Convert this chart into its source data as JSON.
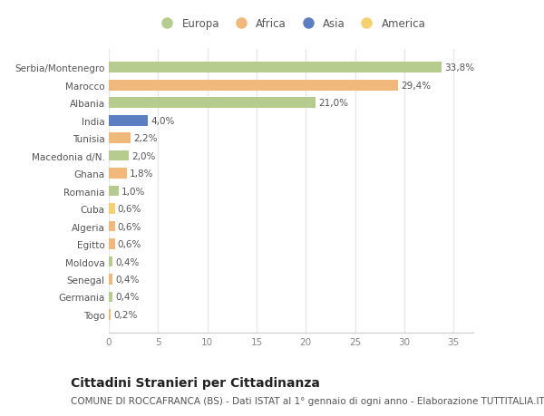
{
  "categories": [
    "Serbia/Montenegro",
    "Marocco",
    "Albania",
    "India",
    "Tunisia",
    "Macedonia d/N.",
    "Ghana",
    "Romania",
    "Cuba",
    "Algeria",
    "Egitto",
    "Moldova",
    "Senegal",
    "Germania",
    "Togo"
  ],
  "values": [
    33.8,
    29.4,
    21.0,
    4.0,
    2.2,
    2.0,
    1.8,
    1.0,
    0.6,
    0.6,
    0.6,
    0.4,
    0.4,
    0.4,
    0.2
  ],
  "labels": [
    "33,8%",
    "29,4%",
    "21,0%",
    "4,0%",
    "2,2%",
    "2,0%",
    "1,8%",
    "1,0%",
    "0,6%",
    "0,6%",
    "0,6%",
    "0,4%",
    "0,4%",
    "0,4%",
    "0,2%"
  ],
  "continents": [
    "Europa",
    "Africa",
    "Europa",
    "Asia",
    "Africa",
    "Europa",
    "Africa",
    "Europa",
    "America",
    "Africa",
    "Africa",
    "Europa",
    "Africa",
    "Europa",
    "Africa"
  ],
  "continent_colors": {
    "Europa": "#b5cc8e",
    "Africa": "#f0b87a",
    "Asia": "#5b7fc0",
    "America": "#f5d070"
  },
  "legend_order": [
    "Europa",
    "Africa",
    "Asia",
    "America"
  ],
  "xlim": [
    0,
    37
  ],
  "xticks": [
    0,
    5,
    10,
    15,
    20,
    25,
    30,
    35
  ],
  "title": "Cittadini Stranieri per Cittadinanza",
  "subtitle": "COMUNE DI ROCCAFRANCA (BS) - Dati ISTAT al 1° gennaio di ogni anno - Elaborazione TUTTITALIA.IT",
  "background_color": "#ffffff",
  "plot_bg_color": "#ffffff",
  "grid_color": "#e8e8e8",
  "bar_height": 0.6,
  "title_fontsize": 10,
  "subtitle_fontsize": 7.5,
  "label_fontsize": 7.5,
  "tick_fontsize": 7.5,
  "legend_fontsize": 8.5
}
